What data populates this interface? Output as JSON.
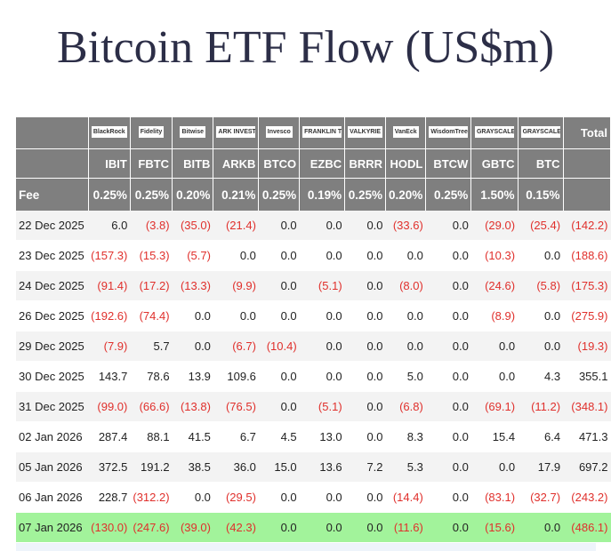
{
  "title": "Bitcoin ETF Flow (US$m)",
  "table": {
    "issuers": [
      "BlackRock",
      "Fidelity",
      "Bitwise",
      "ARK INVEST",
      "Invesco",
      "FRANKLIN TEMPLETON",
      "VALKYRIE",
      "VanEck",
      "WisdomTree",
      "GRAYSCALE",
      "GRAYSCALE"
    ],
    "total_label": "Total",
    "tickers": [
      "IBIT",
      "FBTC",
      "BITB",
      "ARKB",
      "BTCO",
      "EZBC",
      "BRRR",
      "HODL",
      "BTCW",
      "GBTC",
      "BTC"
    ],
    "fee_label": "Fee",
    "fees": [
      "0.25%",
      "0.25%",
      "0.20%",
      "0.21%",
      "0.25%",
      "0.19%",
      "0.25%",
      "0.20%",
      "0.25%",
      "1.50%",
      "0.15%"
    ],
    "rows": [
      {
        "date": "22 Dec 2025",
        "values": [
          "6.0",
          "(3.8)",
          "(35.0)",
          "(21.4)",
          "0.0",
          "0.0",
          "0.0",
          "(33.6)",
          "0.0",
          "(29.0)",
          "(25.4)",
          "(142.2)"
        ]
      },
      {
        "date": "23 Dec 2025",
        "values": [
          "(157.3)",
          "(15.3)",
          "(5.7)",
          "0.0",
          "0.0",
          "0.0",
          "0.0",
          "0.0",
          "0.0",
          "(10.3)",
          "0.0",
          "(188.6)"
        ]
      },
      {
        "date": "24 Dec 2025",
        "values": [
          "(91.4)",
          "(17.2)",
          "(13.3)",
          "(9.9)",
          "0.0",
          "(5.1)",
          "0.0",
          "(8.0)",
          "0.0",
          "(24.6)",
          "(5.8)",
          "(175.3)"
        ]
      },
      {
        "date": "26 Dec 2025",
        "values": [
          "(192.6)",
          "(74.4)",
          "0.0",
          "0.0",
          "0.0",
          "0.0",
          "0.0",
          "0.0",
          "0.0",
          "(8.9)",
          "0.0",
          "(275.9)"
        ]
      },
      {
        "date": "29 Dec 2025",
        "values": [
          "(7.9)",
          "5.7",
          "0.0",
          "(6.7)",
          "(10.4)",
          "0.0",
          "0.0",
          "0.0",
          "0.0",
          "0.0",
          "0.0",
          "(19.3)"
        ]
      },
      {
        "date": "30 Dec 2025",
        "values": [
          "143.7",
          "78.6",
          "13.9",
          "109.6",
          "0.0",
          "0.0",
          "0.0",
          "5.0",
          "0.0",
          "0.0",
          "4.3",
          "355.1"
        ]
      },
      {
        "date": "31 Dec 2025",
        "values": [
          "(99.0)",
          "(66.6)",
          "(13.8)",
          "(76.5)",
          "0.0",
          "(5.1)",
          "0.0",
          "(6.8)",
          "0.0",
          "(69.1)",
          "(11.2)",
          "(348.1)"
        ]
      },
      {
        "date": "02 Jan 2026",
        "values": [
          "287.4",
          "88.1",
          "41.5",
          "6.7",
          "4.5",
          "13.0",
          "0.0",
          "8.3",
          "0.0",
          "15.4",
          "6.4",
          "471.3"
        ]
      },
      {
        "date": "05 Jan 2026",
        "values": [
          "372.5",
          "191.2",
          "38.5",
          "36.0",
          "15.0",
          "13.6",
          "7.2",
          "5.3",
          "0.0",
          "0.0",
          "17.9",
          "697.2"
        ]
      },
      {
        "date": "06 Jan 2026",
        "values": [
          "228.7",
          "(312.2)",
          "0.0",
          "(29.5)",
          "0.0",
          "0.0",
          "0.0",
          "(14.4)",
          "0.0",
          "(83.1)",
          "(32.7)",
          "(243.2)"
        ]
      },
      {
        "date": "07 Jan 2026",
        "values": [
          "(130.0)",
          "(247.6)",
          "(39.0)",
          "(42.3)",
          "0.0",
          "0.0",
          "0.0",
          "(11.6)",
          "0.0",
          "(15.6)",
          "0.0",
          "(486.1)"
        ]
      }
    ]
  }
}
